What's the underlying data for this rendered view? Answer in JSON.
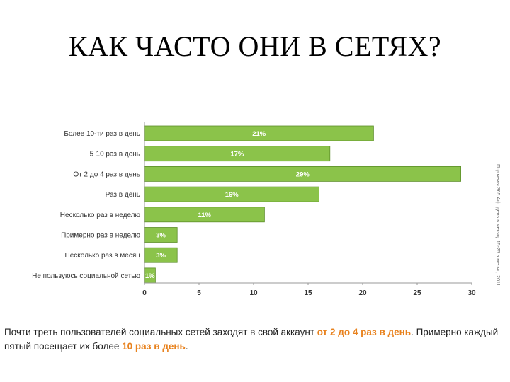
{
  "slide": {
    "title": "КАК ЧАСТО ОНИ В СЕТЯХ?",
    "side_note": "Подъемы 365 Аф. день в месяц. 15-25 в месяц. 2011"
  },
  "chart_data": {
    "type": "bar",
    "orientation": "horizontal",
    "categories": [
      "Более 10-ти раз в день",
      "5-10 раз в день",
      "От 2 до 4 раз в день",
      "Раз в день",
      "Несколько раз в неделю",
      "Примерно раз в неделю",
      "Несколько раз в месяц",
      "Не пользуюсь социальной сетью"
    ],
    "values": [
      21,
      17,
      29,
      16,
      11,
      3,
      3,
      1
    ],
    "value_labels": [
      "21%",
      "17%",
      "29%",
      "16%",
      "11%",
      "3%",
      "3%",
      "1%"
    ],
    "title": "",
    "xlabel": "",
    "ylabel": "",
    "xlim": [
      0,
      30
    ],
    "x_ticks": [
      "0",
      "5",
      "10",
      "15",
      "20",
      "25",
      "30"
    ],
    "grid": false,
    "bar_color": "#8bc34a",
    "bar_edge_color": "#5e8f2a"
  },
  "caption": {
    "part1": "Почти треть пользователей социальных сетей заходят в свой аккаунт ",
    "highlight1": "от 2 до 4 раз в день",
    "part2": ". Примерно каждый пятый посещает их более ",
    "highlight2": "10 раз в день",
    "part3": ".",
    "highlight_color": "#e8821e"
  }
}
